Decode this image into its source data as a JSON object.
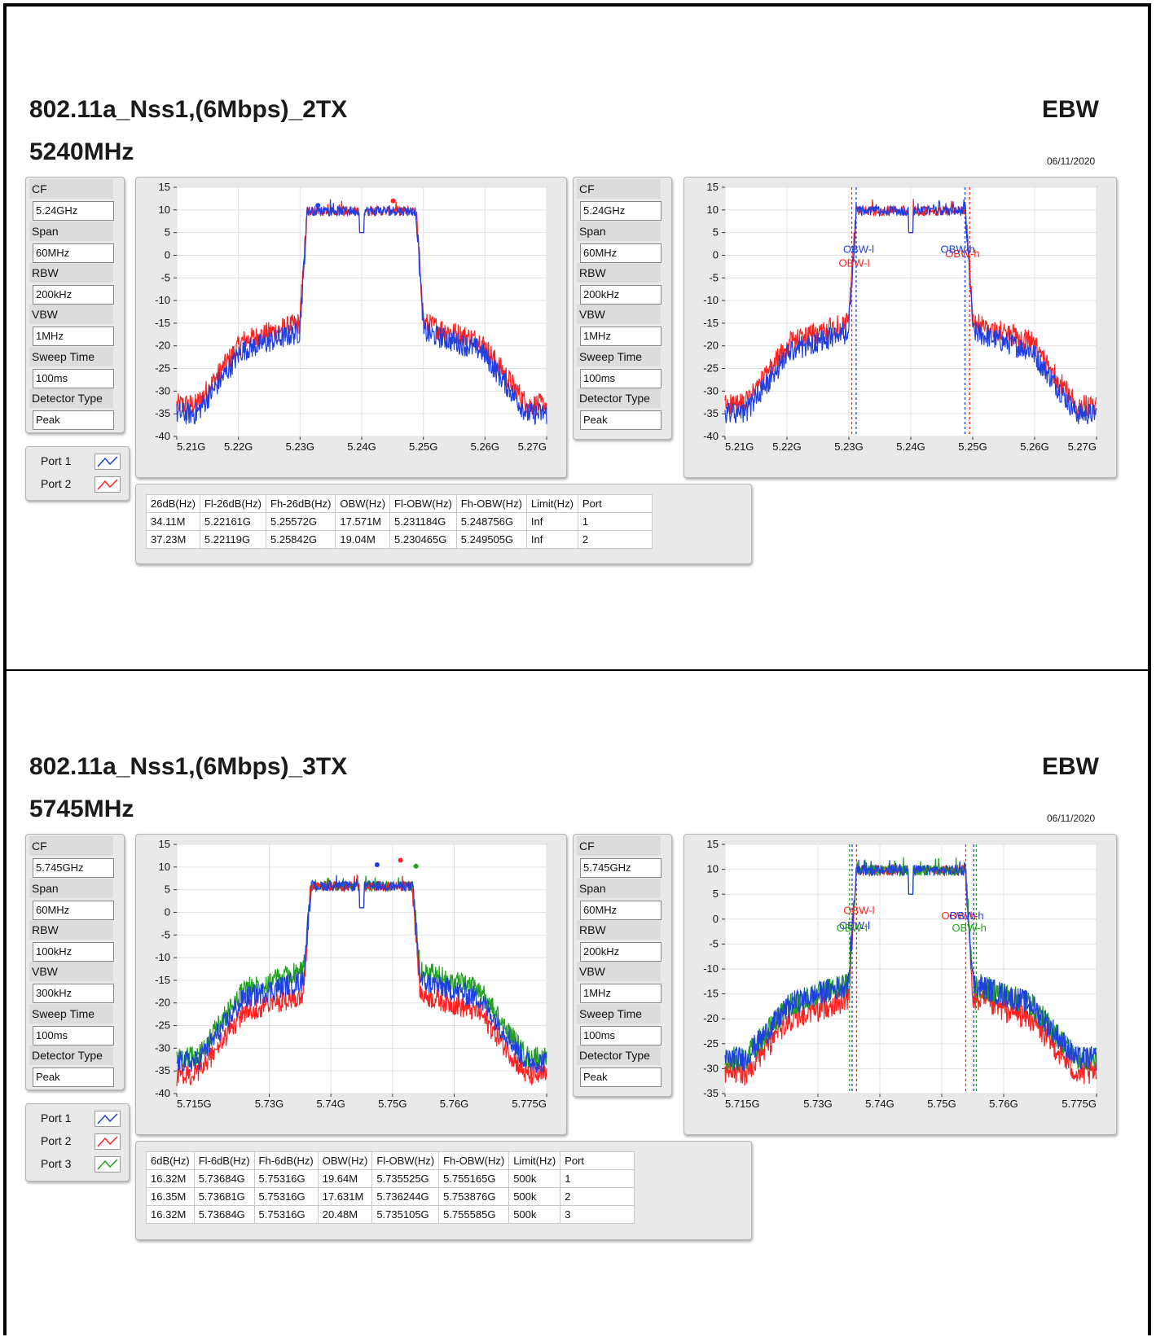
{
  "sections": [
    {
      "title": "802.11a_Nss1,(6Mbps)_2TX",
      "subtitle": "5240MHz",
      "right_title": "EBW",
      "date": "06/11/2020",
      "settings_left": {
        "cf_label": "CF",
        "cf": "5.24GHz",
        "span_label": "Span",
        "span": "60MHz",
        "rbw_label": "RBW",
        "rbw": "200kHz",
        "vbw_label": "VBW",
        "vbw": "1MHz",
        "sweep_label": "Sweep Time",
        "sweep": "100ms",
        "det_label": "Detector Type",
        "det": "Peak"
      },
      "settings_right": {
        "cf_label": "CF",
        "cf": "5.24GHz",
        "span_label": "Span",
        "span": "60MHz",
        "rbw_label": "RBW",
        "rbw": "200kHz",
        "vbw_label": "VBW",
        "vbw": "1MHz",
        "sweep_label": "Sweep Time",
        "sweep": "100ms",
        "det_label": "Detector Type",
        "det": "Peak"
      },
      "legend": [
        {
          "name": "Port 1",
          "color": "#1f3fe0"
        },
        {
          "name": "Port 2",
          "color": "#ff2020"
        }
      ],
      "table": {
        "headers": [
          "26dB(Hz)",
          "Fl-26dB(Hz)",
          "Fh-26dB(Hz)",
          "OBW(Hz)",
          "Fl-OBW(Hz)",
          "Fh-OBW(Hz)",
          "Limit(Hz)",
          "Port"
        ],
        "rows": [
          [
            "34.11M",
            "5.22161G",
            "5.25572G",
            "17.571M",
            "5.231184G",
            "5.248756G",
            "Inf",
            "1"
          ],
          [
            "37.23M",
            "5.22119G",
            "5.25842G",
            "19.04M",
            "5.230465G",
            "5.249505G",
            "Inf",
            "2"
          ]
        ]
      }
    },
    {
      "title": "802.11a_Nss1,(6Mbps)_3TX",
      "subtitle": "5745MHz",
      "right_title": "EBW",
      "date": "06/11/2020",
      "settings_left": {
        "cf_label": "CF",
        "cf": "5.745GHz",
        "span_label": "Span",
        "span": "60MHz",
        "rbw_label": "RBW",
        "rbw": "100kHz",
        "vbw_label": "VBW",
        "vbw": "300kHz",
        "sweep_label": "Sweep Time",
        "sweep": "100ms",
        "det_label": "Detector Type",
        "det": "Peak"
      },
      "settings_right": {
        "cf_label": "CF",
        "cf": "5.745GHz",
        "span_label": "Span",
        "span": "60MHz",
        "rbw_label": "RBW",
        "rbw": "200kHz",
        "vbw_label": "VBW",
        "vbw": "1MHz",
        "sweep_label": "Sweep Time",
        "sweep": "100ms",
        "det_label": "Detector Type",
        "det": "Peak"
      },
      "legend": [
        {
          "name": "Port 1",
          "color": "#1f3fe0"
        },
        {
          "name": "Port 2",
          "color": "#ff2020"
        },
        {
          "name": "Port 3",
          "color": "#20a020"
        }
      ],
      "table": {
        "headers": [
          "6dB(Hz)",
          "Fl-6dB(Hz)",
          "Fh-6dB(Hz)",
          "OBW(Hz)",
          "Fl-OBW(Hz)",
          "Fh-OBW(Hz)",
          "Limit(Hz)",
          "Port"
        ],
        "rows": [
          [
            "16.32M",
            "5.73684G",
            "5.75316G",
            "19.64M",
            "5.735525G",
            "5.755165G",
            "500k",
            "1"
          ],
          [
            "16.35M",
            "5.73681G",
            "5.75316G",
            "17.631M",
            "5.736244G",
            "5.753876G",
            "500k",
            "2"
          ],
          [
            "16.32M",
            "5.73684G",
            "5.75316G",
            "20.48M",
            "5.735105G",
            "5.755585G",
            "500k",
            "3"
          ]
        ]
      }
    }
  ],
  "chart_data": [
    {
      "type": "line",
      "xlim": [
        5.21,
        5.27
      ],
      "ylim": [
        -40,
        15
      ],
      "x_ticks": [
        "5.21G",
        "5.22G",
        "5.23G",
        "5.24G",
        "5.25G",
        "5.26G",
        "5.27G"
      ],
      "y_ticks": [
        "15",
        "10",
        "5",
        "0",
        "-5",
        "-10",
        "-15",
        "-20",
        "-25",
        "-30",
        "-35",
        "-40"
      ],
      "grid": true,
      "center": 5.24,
      "half_width": 0.0088,
      "level": 10,
      "series": [
        {
          "color": "#ff2020",
          "edge_level": -15,
          "floor": -33
        },
        {
          "color": "#1f3fe0",
          "edge_level": -17,
          "floor": -35
        }
      ],
      "peak_markers": [
        {
          "x": 5.2329,
          "y": 11
        },
        {
          "x": 5.2451,
          "y": 12
        }
      ],
      "markers": []
    },
    {
      "type": "line",
      "xlim": [
        5.21,
        5.27
      ],
      "ylim": [
        -40,
        15
      ],
      "x_ticks": [
        "5.21G",
        "5.22G",
        "5.23G",
        "5.24G",
        "5.25G",
        "5.26G",
        "5.27G"
      ],
      "y_ticks": [
        "15",
        "10",
        "5",
        "0",
        "-5",
        "-10",
        "-15",
        "-20",
        "-25",
        "-30",
        "-35",
        "-40"
      ],
      "grid": true,
      "center": 5.24,
      "half_width": 0.0088,
      "level": 10,
      "series": [
        {
          "color": "#ff2020",
          "edge_level": -15,
          "floor": -33
        },
        {
          "color": "#1f3fe0",
          "edge_level": -17,
          "floor": -35
        }
      ],
      "peak_markers": [],
      "markers": [
        {
          "label": "OBW-l",
          "x": 5.230465,
          "color": "#ff2020",
          "label_y": -2.5
        },
        {
          "label": "OBW-l",
          "x": 5.231184,
          "color": "#1f3fe0",
          "label_y": 0.5
        },
        {
          "label": "OBW-h",
          "x": 5.249505,
          "color": "#ff2020",
          "label_y": -0.5
        },
        {
          "label": "OBW-h",
          "x": 5.248756,
          "color": "#1f3fe0",
          "label_y": 0.5
        }
      ]
    },
    {
      "type": "line",
      "xlim": [
        5.715,
        5.775
      ],
      "ylim": [
        -40,
        15
      ],
      "x_ticks": [
        "5.715G",
        "5.73G",
        "5.74G",
        "5.75G",
        "5.76G",
        "5.775G"
      ],
      "y_ticks": [
        "15",
        "10",
        "5",
        "0",
        "-5",
        "-10",
        "-15",
        "-20",
        "-25",
        "-30",
        "-35",
        "-40"
      ],
      "grid": true,
      "center": 5.745,
      "half_width": 0.0082,
      "level": 6,
      "series": [
        {
          "color": "#20a020",
          "edge_level": -13,
          "floor": -32
        },
        {
          "color": "#ff2020",
          "edge_level": -18,
          "floor": -36
        },
        {
          "color": "#1f3fe0",
          "edge_level": -15,
          "floor": -33
        }
      ],
      "peak_markers": [
        {
          "x": 5.7475,
          "y": 10.5
        },
        {
          "x": 5.7513,
          "y": 11.5
        },
        {
          "x": 5.7538,
          "y": 10.2
        }
      ],
      "markers": []
    },
    {
      "type": "line",
      "xlim": [
        5.715,
        5.775
      ],
      "ylim": [
        -35,
        15
      ],
      "x_ticks": [
        "5.715G",
        "5.73G",
        "5.74G",
        "5.75G",
        "5.76G",
        "5.775G"
      ],
      "y_ticks": [
        "15",
        "10",
        "5",
        "0",
        "-5",
        "-10",
        "-15",
        "-20",
        "-25",
        "-30",
        "-35"
      ],
      "grid": true,
      "center": 5.745,
      "half_width": 0.0088,
      "level": 10,
      "series": [
        {
          "color": "#ff2020",
          "edge_level": -16,
          "floor": -31
        },
        {
          "color": "#20a020",
          "edge_level": -13,
          "floor": -28
        },
        {
          "color": "#1f3fe0",
          "edge_level": -13,
          "floor": -28
        }
      ],
      "peak_markers": [],
      "markers": [
        {
          "label": "OBW-l",
          "x": 5.736244,
          "color": "#ff2020",
          "label_y": 1.0
        },
        {
          "label": "OBW-l",
          "x": 5.735525,
          "color": "#1f3fe0",
          "label_y": -2.0
        },
        {
          "label": "OBW-l",
          "x": 5.735105,
          "color": "#20a020",
          "label_y": -2.5
        },
        {
          "label": "OBW-h",
          "x": 5.753876,
          "color": "#ff2020",
          "label_y": 0
        },
        {
          "label": "OBW-h",
          "x": 5.755165,
          "color": "#1f3fe0",
          "label_y": 0
        },
        {
          "label": "OBW-h",
          "x": 5.755585,
          "color": "#20a020",
          "label_y": -2.5
        }
      ]
    }
  ]
}
